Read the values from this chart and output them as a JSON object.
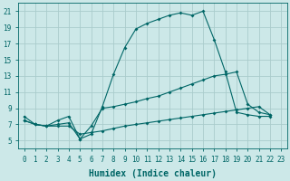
{
  "xlabel": "Humidex (Indice chaleur)",
  "bg_color": "#cce8e8",
  "grid_color": "#aacccc",
  "line_color": "#006666",
  "xlim": [
    -0.5,
    23.5
  ],
  "ylim": [
    4.0,
    22.0
  ],
  "xticks": [
    0,
    1,
    2,
    3,
    4,
    5,
    6,
    7,
    8,
    9,
    10,
    11,
    12,
    13,
    14,
    15,
    16,
    17,
    18,
    19,
    20,
    21,
    22,
    23
  ],
  "yticks": [
    5,
    7,
    9,
    11,
    13,
    15,
    17,
    19,
    21
  ],
  "curve_arch_x": [
    0,
    1,
    2,
    3,
    4,
    5,
    6,
    7,
    8,
    9,
    10,
    11,
    12,
    13,
    14,
    15,
    16,
    17,
    18,
    19,
    20,
    21,
    22
  ],
  "curve_arch_y": [
    8.0,
    7.0,
    6.8,
    7.5,
    8.0,
    5.2,
    5.8,
    9.2,
    13.2,
    16.5,
    18.8,
    19.5,
    20.0,
    20.5,
    20.8,
    20.5,
    21.0,
    17.5,
    13.5,
    8.5,
    8.2,
    8.0,
    8.0
  ],
  "curve_diag_x": [
    0,
    1,
    2,
    3,
    4,
    5,
    6,
    7,
    8,
    9,
    10,
    11,
    12,
    13,
    14,
    15,
    16,
    17,
    18,
    19,
    20,
    21,
    22
  ],
  "curve_diag_y": [
    7.5,
    7.0,
    6.8,
    7.0,
    7.2,
    5.2,
    6.8,
    9.0,
    9.2,
    9.5,
    9.8,
    10.2,
    10.5,
    11.0,
    11.5,
    12.0,
    12.5,
    13.0,
    13.2,
    13.5,
    9.5,
    8.5,
    8.2
  ],
  "curve_flat_x": [
    0,
    1,
    2,
    3,
    4,
    5,
    6,
    7,
    8,
    9,
    10,
    11,
    12,
    13,
    14,
    15,
    16,
    17,
    18,
    19,
    20,
    21,
    22
  ],
  "curve_flat_y": [
    7.5,
    7.0,
    6.8,
    6.8,
    6.8,
    5.8,
    6.0,
    6.2,
    6.5,
    6.8,
    7.0,
    7.2,
    7.4,
    7.6,
    7.8,
    8.0,
    8.2,
    8.4,
    8.6,
    8.8,
    9.0,
    9.2,
    8.2
  ],
  "xlabel_fontsize": 7,
  "tick_fontsize": 5.5
}
